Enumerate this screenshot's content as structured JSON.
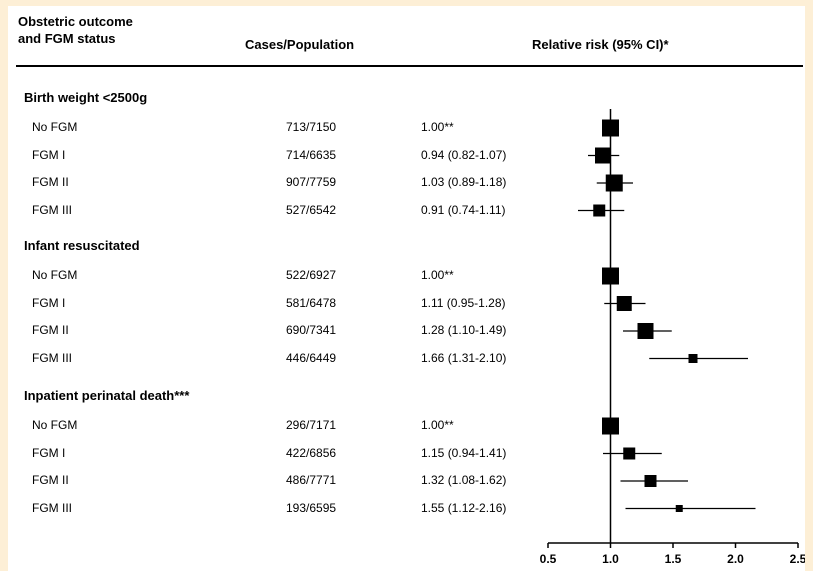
{
  "headers": {
    "outcome_line1": "Obstetric outcome",
    "outcome_line2": "and FGM status",
    "cases": "Cases/Population",
    "rr": "Relative risk (95% CI)*"
  },
  "chart_data": {
    "type": "forest",
    "x_ticks": [
      "0.5",
      "1.0",
      "1.5",
      "2.0",
      "2.5"
    ],
    "xlim": [
      0.5,
      2.5
    ],
    "reference_line": 1.0,
    "groups": [
      {
        "title": "Birth weight <2500g",
        "rows": [
          {
            "label": "No FGM",
            "cases": "713/7150",
            "rr_text": "1.00**",
            "rr": 1.0,
            "lo": 1.0,
            "hi": 1.0,
            "size": 17
          },
          {
            "label": "FGM I",
            "cases": "714/6635",
            "rr_text": "0.94 (0.82-1.07)",
            "rr": 0.94,
            "lo": 0.82,
            "hi": 1.07,
            "size": 16
          },
          {
            "label": "FGM II",
            "cases": "907/7759",
            "rr_text": "1.03 (0.89-1.18)",
            "rr": 1.03,
            "lo": 0.89,
            "hi": 1.18,
            "size": 17
          },
          {
            "label": "FGM III",
            "cases": "527/6542",
            "rr_text": "0.91 (0.74-1.11)",
            "rr": 0.91,
            "lo": 0.74,
            "hi": 1.11,
            "size": 12
          }
        ]
      },
      {
        "title": "Infant resuscitated",
        "rows": [
          {
            "label": "No FGM",
            "cases": "522/6927",
            "rr_text": "1.00**",
            "rr": 1.0,
            "lo": 1.0,
            "hi": 1.0,
            "size": 17
          },
          {
            "label": "FGM I",
            "cases": "581/6478",
            "rr_text": "1.11 (0.95-1.28)",
            "rr": 1.11,
            "lo": 0.95,
            "hi": 1.28,
            "size": 15
          },
          {
            "label": "FGM II",
            "cases": "690/7341",
            "rr_text": "1.28 (1.10-1.49)",
            "rr": 1.28,
            "lo": 1.1,
            "hi": 1.49,
            "size": 16
          },
          {
            "label": "FGM III",
            "cases": "446/6449",
            "rr_text": "1.66 (1.31-2.10)",
            "rr": 1.66,
            "lo": 1.31,
            "hi": 2.1,
            "size": 9
          }
        ]
      },
      {
        "title": "Inpatient perinatal death***",
        "rows": [
          {
            "label": "No FGM",
            "cases": "296/7171",
            "rr_text": "1.00**",
            "rr": 1.0,
            "lo": 1.0,
            "hi": 1.0,
            "size": 17
          },
          {
            "label": "FGM I",
            "cases": "422/6856",
            "rr_text": "1.15 (0.94-1.41)",
            "rr": 1.15,
            "lo": 0.94,
            "hi": 1.41,
            "size": 12
          },
          {
            "label": "FGM II",
            "cases": "486/7771",
            "rr_text": "1.32 (1.08-1.62)",
            "rr": 1.32,
            "lo": 1.08,
            "hi": 1.62,
            "size": 12
          },
          {
            "label": "FGM III",
            "cases": "193/6595",
            "rr_text": "1.55 (1.12-2.16)",
            "rr": 1.55,
            "lo": 1.12,
            "hi": 2.16,
            "size": 7
          }
        ]
      }
    ]
  }
}
